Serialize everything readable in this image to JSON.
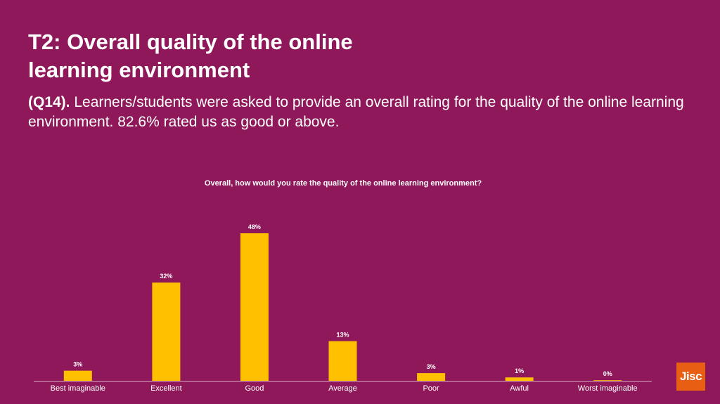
{
  "colors": {
    "background": "#8e1859",
    "bar": "#ffc000",
    "text": "#ffffff",
    "axis": "#d9a6c2",
    "logo": "#e85e13"
  },
  "slide": {
    "title": "T2: Overall quality of the online learning environment",
    "subtitle_prefix": "(Q14).",
    "subtitle_text": " Learners/students were asked to provide an overall rating for the quality of the online learning environment. 82.6% rated us as good or above.",
    "logo_text": "Jisc"
  },
  "chart_data": {
    "type": "bar",
    "title": "Overall, how would you rate the quality of the online learning environment?",
    "categories": [
      "Best imaginable",
      "Excellent",
      "Good",
      "Average",
      "Poor",
      "Awful",
      "Worst imaginable"
    ],
    "values": [
      3.4,
      32,
      48,
      13,
      2.6,
      1.2,
      0.3
    ],
    "data_labels": [
      "3%",
      "32%",
      "48%",
      "13%",
      "3%",
      "1%",
      "0%"
    ],
    "xlabel": "",
    "ylabel": "",
    "ylim": [
      0,
      48
    ],
    "grid": false,
    "legend": "none"
  }
}
